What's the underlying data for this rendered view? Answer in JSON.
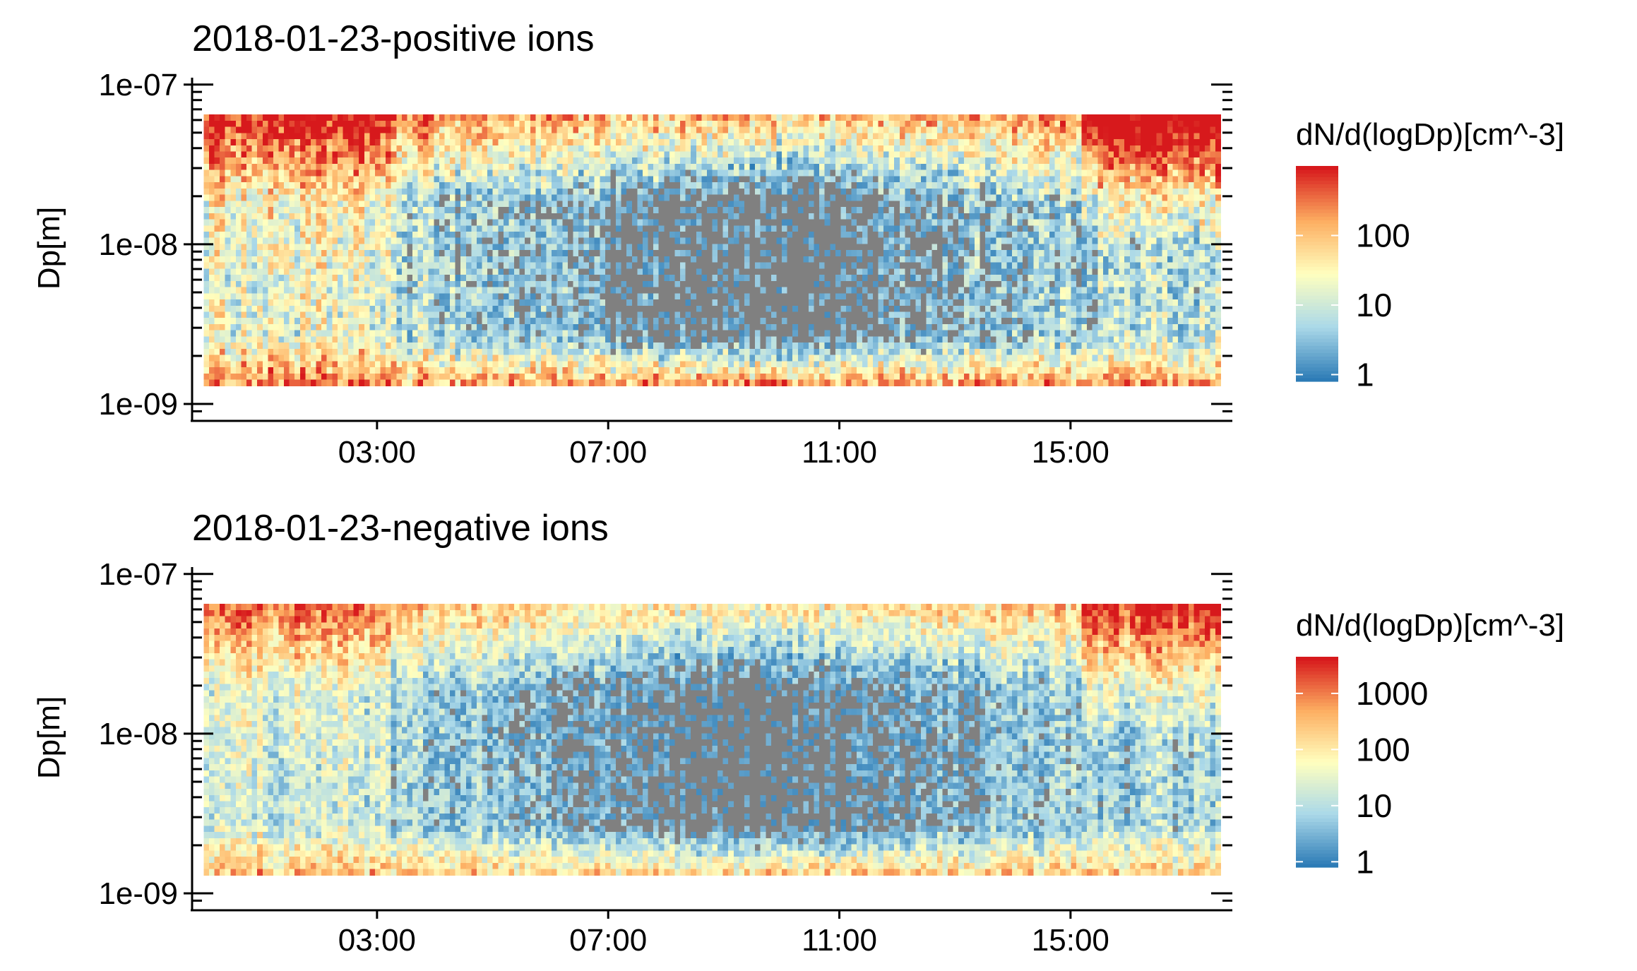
{
  "chart_data": [
    {
      "type": "heatmap",
      "title": "2018-01-23-positive ions",
      "xlabel": "",
      "ylabel": "Dp[m]",
      "x_ticks": [
        "03:00",
        "07:00",
        "11:00",
        "15:00"
      ],
      "x_tick_hours": [
        3,
        7,
        11,
        15
      ],
      "xlim_hours": [
        -0.2,
        17.8
      ],
      "x_data_range_hours": [
        0,
        17.6
      ],
      "y_scale": "log",
      "y_ticks": [
        "1e-07",
        "1e-08",
        "1e-09"
      ],
      "y_tick_values": [
        1e-07,
        1e-08,
        1e-09
      ],
      "ylim": [
        8.5e-10,
        1.05e-07
      ],
      "y_data_range": [
        1.3e-09,
        6.5e-08
      ],
      "missing_color": "#808080",
      "legend": {
        "title": "dN/d(logDp)[cm^-3]",
        "scale": "log",
        "labels": [
          "100",
          "10",
          "1"
        ],
        "label_values": [
          100,
          10,
          1
        ],
        "range": [
          0.8,
          1000
        ],
        "colors": [
          "#2c7bb6",
          "#abd9e9",
          "#ffffbf",
          "#fdae61",
          "#d7191c"
        ]
      }
    },
    {
      "type": "heatmap",
      "title": "2018-01-23-negative ions",
      "xlabel": "",
      "ylabel": "Dp[m]",
      "x_ticks": [
        "03:00",
        "07:00",
        "11:00",
        "15:00"
      ],
      "x_tick_hours": [
        3,
        7,
        11,
        15
      ],
      "xlim_hours": [
        -0.2,
        17.8
      ],
      "x_data_range_hours": [
        0,
        17.6
      ],
      "y_scale": "log",
      "y_ticks": [
        "1e-07",
        "1e-08",
        "1e-09"
      ],
      "y_tick_values": [
        1e-07,
        1e-08,
        1e-09
      ],
      "ylim": [
        8.5e-10,
        1.05e-07
      ],
      "y_data_range": [
        1.3e-09,
        6.5e-08
      ],
      "missing_color": "#808080",
      "legend": {
        "title": "dN/d(logDp)[cm^-3]",
        "scale": "log",
        "labels": [
          "1000",
          "100",
          "10",
          "1"
        ],
        "label_values": [
          1000,
          100,
          10,
          1
        ],
        "range": [
          0.8,
          4500
        ],
        "colors": [
          "#2c7bb6",
          "#abd9e9",
          "#ffffbf",
          "#fdae61",
          "#d7191c"
        ]
      }
    }
  ]
}
